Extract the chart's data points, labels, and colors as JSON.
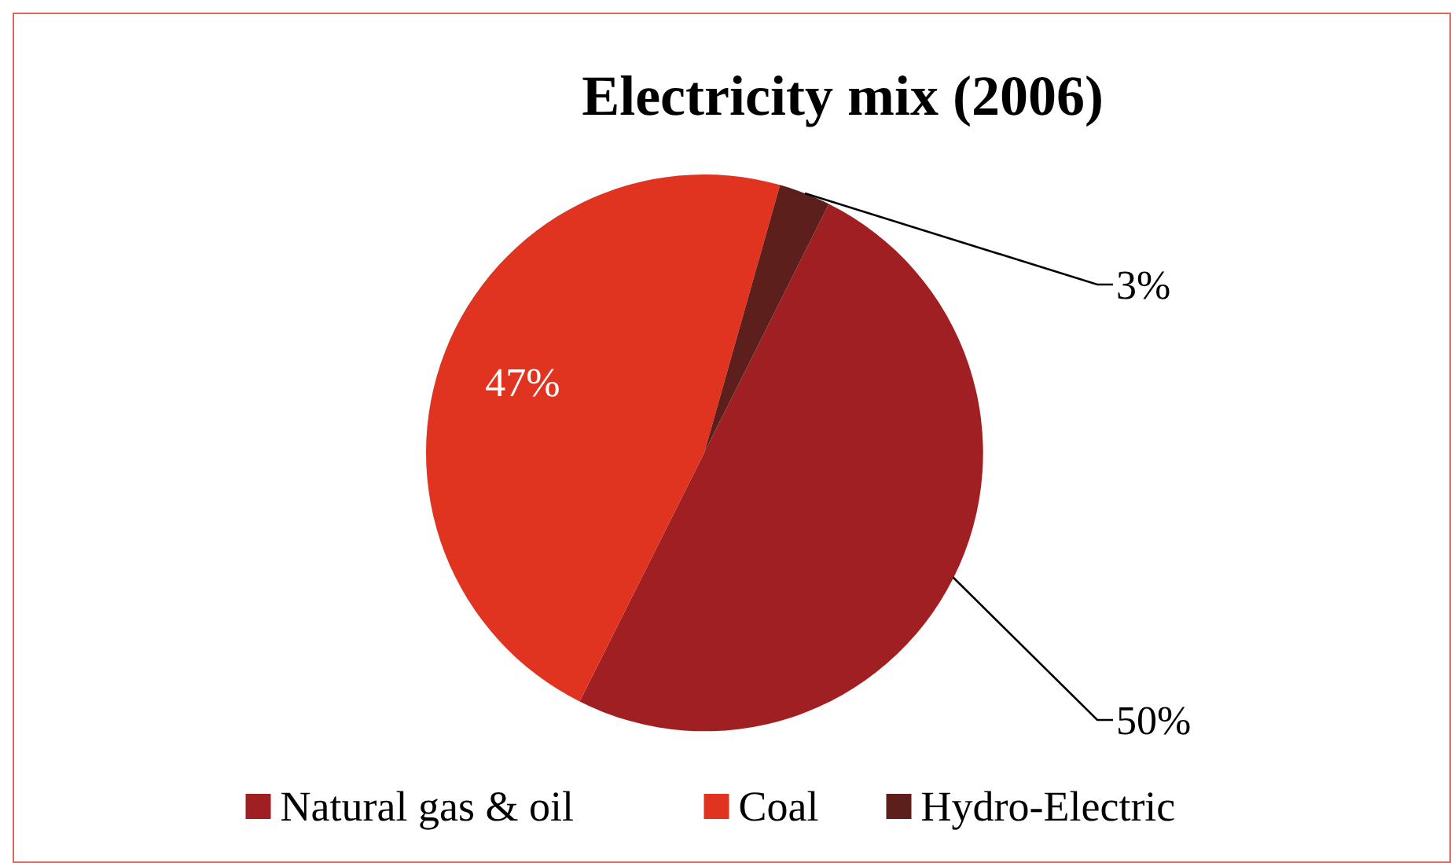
{
  "chart_data": {
    "type": "pie",
    "title": "Electricity mix (2006)",
    "categories": [
      "Natural gas & oil",
      "Coal",
      "Hydro-Electric"
    ],
    "values": [
      50,
      47,
      3
    ],
    "colors": [
      "#a01f22",
      "#e03320",
      "#5c1f1c"
    ],
    "value_labels": [
      "50%",
      "47%",
      "3%"
    ],
    "legend": "bottom"
  }
}
